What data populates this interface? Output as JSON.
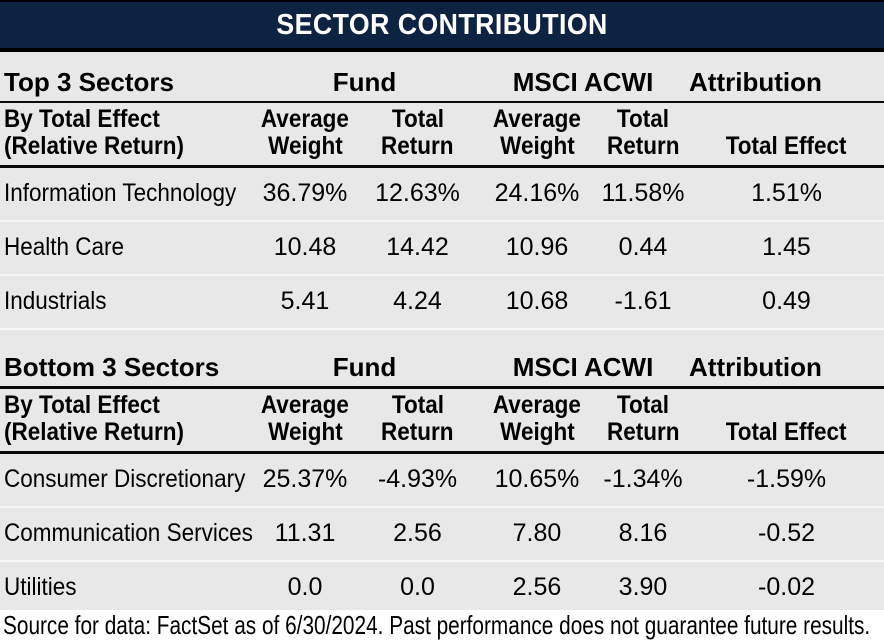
{
  "banner": {
    "title": "SECTOR CONTRIBUTION"
  },
  "colors": {
    "banner_bg": "#0d2342",
    "banner_text": "#ffffff",
    "table_bg": "#e8e8e8",
    "footer_bg": "#ffffff",
    "text": "#000000",
    "rule": "#0a0a0a",
    "row_divider": "#f8f8f8"
  },
  "sections": [
    {
      "section_label": "Top 3 Sectors",
      "sub_label_line1": "By Total Effect",
      "sub_label_line2": "(Relative Return)",
      "fund_header": "Fund",
      "benchmark_header": "MSCI ACWI",
      "attribution_header": "Attribution",
      "columns": {
        "fund_avg_line1": "Average",
        "fund_avg_line2": "Weight",
        "fund_ret_line1": "Total",
        "fund_ret_line2": "Return",
        "bm_avg_line1": "Average",
        "bm_avg_line2": "Weight",
        "bm_ret_line1": "Total",
        "bm_ret_line2": "Return",
        "effect": "Total Effect"
      },
      "rows": [
        {
          "sector": "Information Technology",
          "values": [
            "36.79%",
            "12.63%",
            "24.16%",
            "11.58%",
            "1.51%"
          ]
        },
        {
          "sector": "Health Care",
          "values": [
            "10.48",
            "14.42",
            "10.96",
            "0.44",
            "1.45"
          ]
        },
        {
          "sector": "Industrials",
          "values": [
            "5.41",
            "4.24",
            "10.68",
            "-1.61",
            "0.49"
          ]
        }
      ]
    },
    {
      "section_label": "Bottom 3 Sectors",
      "sub_label_line1": "By Total Effect",
      "sub_label_line2": "(Relative Return)",
      "fund_header": "Fund",
      "benchmark_header": "MSCI ACWI",
      "attribution_header": "Attribution",
      "columns": {
        "fund_avg_line1": "Average",
        "fund_avg_line2": "Weight",
        "fund_ret_line1": "Total",
        "fund_ret_line2": "Return",
        "bm_avg_line1": "Average",
        "bm_avg_line2": "Weight",
        "bm_ret_line1": "Total",
        "bm_ret_line2": "Return",
        "effect": "Total Effect"
      },
      "rows": [
        {
          "sector": "Consumer Discretionary",
          "values": [
            "25.37%",
            "-4.93%",
            "10.65%",
            "-1.34%",
            "-1.59%"
          ]
        },
        {
          "sector": "Communication Services",
          "values": [
            "11.31",
            "2.56",
            "7.80",
            "8.16",
            "-0.52"
          ]
        },
        {
          "sector": "Utilities",
          "values": [
            "0.0",
            "0.0",
            "2.56",
            "3.90",
            "-0.02"
          ]
        }
      ]
    }
  ],
  "footer": {
    "source_note": "Source for data: FactSet as of 6/30/2024. Past performance does not guarantee future results."
  }
}
